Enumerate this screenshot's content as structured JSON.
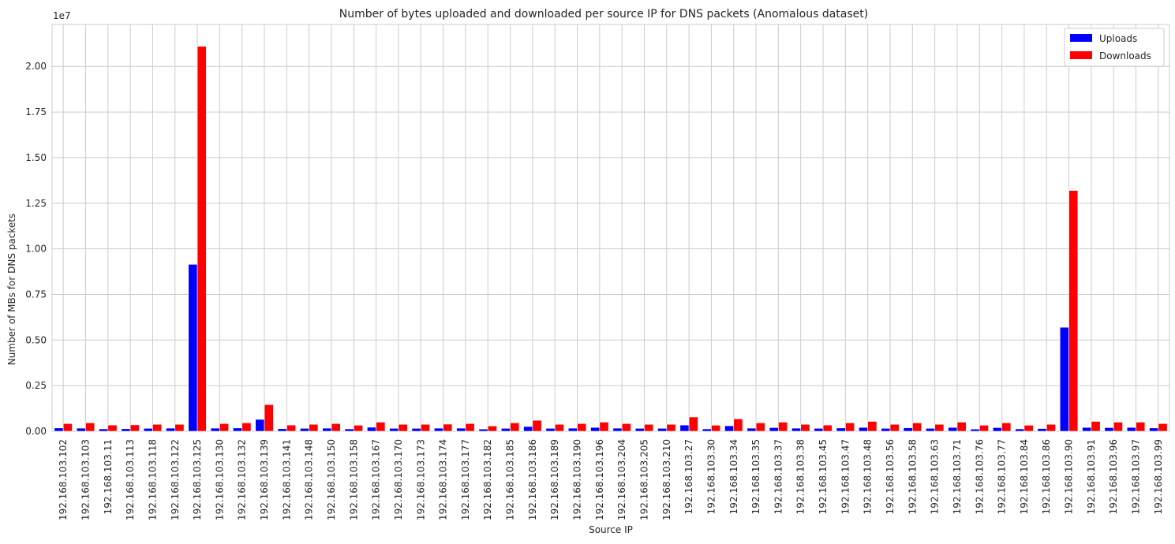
{
  "chart_data": {
    "type": "bar",
    "title": "Number of bytes uploaded and downloaded per source IP for DNS packets (Anomalous dataset)",
    "xlabel": "Source IP",
    "ylabel": "Number of MBs for DNS packets",
    "y_offset_label": "1e7",
    "ylim": [
      0,
      22300000
    ],
    "yticks": [
      0,
      2500000,
      5000000,
      7500000,
      10000000,
      12500000,
      15000000,
      17500000,
      20000000
    ],
    "ytick_labels": [
      "0.00",
      "0.25",
      "0.50",
      "0.75",
      "1.00",
      "1.25",
      "1.50",
      "1.75",
      "2.00"
    ],
    "grid": true,
    "legend_position": "top-right",
    "categories": [
      "192.168.103.102",
      "192.168.103.103",
      "192.168.103.11",
      "192.168.103.113",
      "192.168.103.118",
      "192.168.103.122",
      "192.168.103.125",
      "192.168.103.130",
      "192.168.103.132",
      "192.168.103.139",
      "192.168.103.141",
      "192.168.103.148",
      "192.168.103.150",
      "192.168.103.158",
      "192.168.103.167",
      "192.168.103.170",
      "192.168.103.173",
      "192.168.103.174",
      "192.168.103.177",
      "192.168.103.182",
      "192.168.103.185",
      "192.168.103.186",
      "192.168.103.189",
      "192.168.103.190",
      "192.168.103.196",
      "192.168.103.204",
      "192.168.103.205",
      "192.168.103.210",
      "192.168.103.27",
      "192.168.103.30",
      "192.168.103.34",
      "192.168.103.35",
      "192.168.103.37",
      "192.168.103.38",
      "192.168.103.45",
      "192.168.103.47",
      "192.168.103.48",
      "192.168.103.56",
      "192.168.103.58",
      "192.168.103.63",
      "192.168.103.71",
      "192.168.103.76",
      "192.168.103.77",
      "192.168.103.84",
      "192.168.103.86",
      "192.168.103.90",
      "192.168.103.91",
      "192.168.103.96",
      "192.168.103.97",
      "192.168.103.99"
    ],
    "series": [
      {
        "name": "Uploads",
        "color": "#0000ff",
        "values": [
          180000,
          170000,
          130000,
          140000,
          160000,
          170000,
          9150000,
          170000,
          180000,
          650000,
          140000,
          160000,
          170000,
          130000,
          220000,
          160000,
          160000,
          170000,
          170000,
          120000,
          160000,
          260000,
          160000,
          170000,
          210000,
          170000,
          160000,
          160000,
          340000,
          130000,
          300000,
          170000,
          200000,
          170000,
          160000,
          180000,
          210000,
          160000,
          190000,
          160000,
          210000,
          120000,
          200000,
          130000,
          150000,
          5700000,
          210000,
          200000,
          210000,
          180000
        ]
      },
      {
        "name": "Downloads",
        "color": "#ff0000",
        "values": [
          420000,
          460000,
          340000,
          350000,
          380000,
          380000,
          21100000,
          420000,
          460000,
          1460000,
          340000,
          380000,
          420000,
          330000,
          500000,
          380000,
          380000,
          390000,
          420000,
          290000,
          460000,
          600000,
          380000,
          420000,
          500000,
          420000,
          380000,
          380000,
          780000,
          330000,
          680000,
          460000,
          500000,
          380000,
          340000,
          460000,
          540000,
          380000,
          460000,
          380000,
          500000,
          330000,
          460000,
          330000,
          380000,
          13200000,
          540000,
          500000,
          500000,
          420000
        ]
      }
    ]
  }
}
